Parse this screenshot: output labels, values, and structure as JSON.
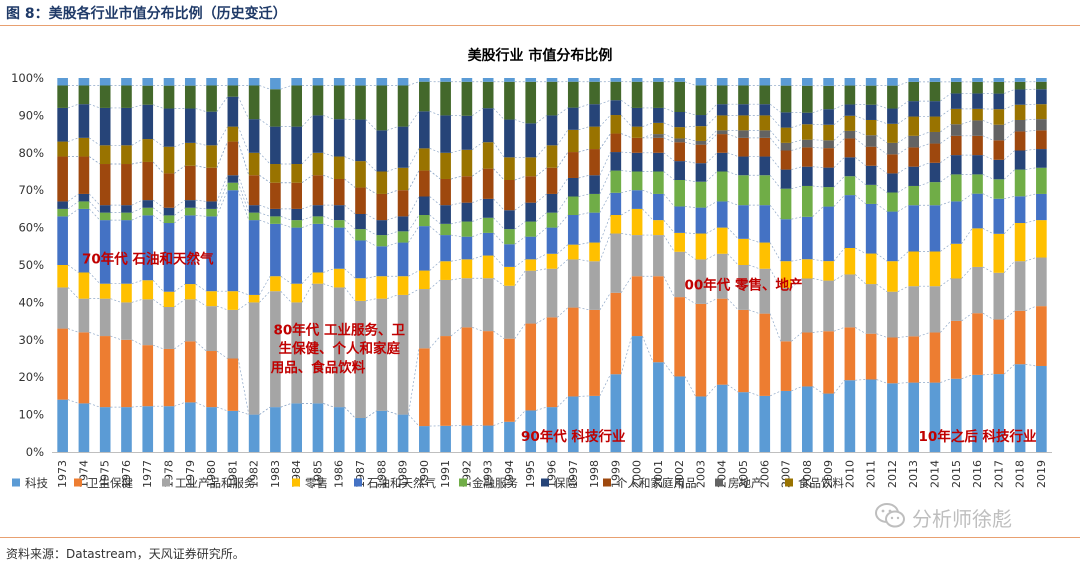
{
  "figure_label": "图 8：美股各行业市值分布比例（历史变迁）",
  "source": "资料来源：Datastream，天风证券研究所。",
  "watermark": "分析师徐彪",
  "watermark_icon": "wechat-icon",
  "chart_data": {
    "type": "bar",
    "stacked": true,
    "title": "美股行业 市值分布比例",
    "xlabel": "",
    "ylabel": "",
    "ylim": [
      0,
      100
    ],
    "y_ticks": [
      "0%",
      "10%",
      "20%",
      "30%",
      "40%",
      "50%",
      "60%",
      "70%",
      "80%",
      "90%",
      "100%"
    ],
    "grid": false,
    "legend_position": "bottom",
    "categories": [
      "1973",
      "1974",
      "1975",
      "1976",
      "1977",
      "1978",
      "1979",
      "1980",
      "1981",
      "1982",
      "1983",
      "1984",
      "1985",
      "1986",
      "1987",
      "1988",
      "1989",
      "1990",
      "1991",
      "1992",
      "1993",
      "1994",
      "1995",
      "1996",
      "1997",
      "1998",
      "1999",
      "2000",
      "2001",
      "2002",
      "2003",
      "2004",
      "2005",
      "2006",
      "2007",
      "2008",
      "2009",
      "2010",
      "2011",
      "2012",
      "2013",
      "2014",
      "2015",
      "2016",
      "2017",
      "2018",
      "2019"
    ],
    "series": [
      {
        "name": "科技",
        "color": "#5b9bd5",
        "values": [
          14,
          13,
          12,
          12,
          12,
          12,
          13,
          12,
          11,
          10,
          12,
          13,
          13,
          12,
          9,
          11,
          10,
          7,
          7,
          7,
          7,
          8,
          11,
          12,
          15,
          15,
          21,
          31,
          24,
          20,
          15,
          18,
          16,
          15,
          16,
          17,
          15,
          19,
          19,
          18,
          18,
          18,
          19,
          20,
          20,
          23,
          23
        ]
      },
      {
        "name": "卫生保健",
        "color": "#ed7d31",
        "values": [
          19,
          19,
          19,
          18,
          16,
          15,
          16,
          15,
          14,
          0,
          0,
          0,
          0,
          0,
          0,
          0,
          0,
          21,
          24,
          26,
          25,
          22,
          23,
          24,
          24,
          23,
          22,
          16,
          23,
          21,
          25,
          23,
          22,
          22,
          13,
          14,
          16,
          14,
          12,
          12,
          12,
          13,
          15,
          16,
          14,
          14,
          16
        ]
      },
      {
        "name": "工业产品和服务",
        "color": "#a5a5a5",
        "values": [
          11,
          9,
          10,
          10,
          12,
          11,
          11,
          12,
          13,
          30,
          31,
          27,
          32,
          32,
          31,
          30,
          32,
          16,
          15,
          13,
          14,
          14,
          14,
          13,
          13,
          13,
          16,
          11,
          11,
          12,
          12,
          12,
          12,
          12,
          14,
          14,
          13,
          14,
          13,
          12,
          13,
          12,
          11,
          12,
          12,
          13,
          13
        ]
      },
      {
        "name": "零售",
        "color": "#ffc000",
        "values": [
          6,
          7,
          4,
          5,
          5,
          4,
          4,
          4,
          5,
          2,
          4,
          5,
          3,
          5,
          6,
          6,
          5,
          5,
          5,
          5,
          6,
          5,
          3,
          4,
          4,
          5,
          5,
          7,
          4,
          5,
          7,
          7,
          7,
          7,
          7,
          5,
          5,
          7,
          8,
          8,
          9,
          9,
          9,
          10,
          10,
          10,
          10
        ]
      },
      {
        "name": "石油和天然气",
        "color": "#4472c4",
        "values": [
          13,
          17,
          17,
          17,
          17,
          18,
          18,
          20,
          27,
          20,
          14,
          15,
          13,
          11,
          10,
          8,
          9,
          12,
          7,
          6,
          6,
          6,
          6,
          7,
          8,
          8,
          6,
          5,
          7,
          7,
          7,
          7,
          9,
          10,
          11,
          11,
          14,
          14,
          13,
          13,
          12,
          12,
          11,
          9,
          9,
          7,
          7
        ]
      },
      {
        "name": "金融服务",
        "color": "#70ad47",
        "values": [
          2,
          2,
          2,
          2,
          2,
          2,
          2,
          2,
          2,
          2,
          2,
          2,
          2,
          2,
          3,
          3,
          3,
          3,
          3,
          4,
          4,
          4,
          4,
          4,
          5,
          5,
          6,
          5,
          6,
          7,
          7,
          8,
          8,
          8,
          8,
          8,
          5,
          5,
          5,
          5,
          5,
          6,
          7,
          5,
          5,
          7,
          7
        ]
      },
      {
        "name": "保险",
        "color": "#264478",
        "values": [
          2,
          2,
          2,
          2,
          2,
          2,
          2,
          2,
          2,
          2,
          2,
          3,
          3,
          4,
          4,
          4,
          4,
          5,
          5,
          5,
          5,
          5,
          5,
          5,
          5,
          5,
          5,
          5,
          5,
          5,
          5,
          5,
          5,
          5,
          5,
          5,
          5,
          5,
          5,
          5,
          5,
          5,
          5,
          5,
          5,
          5,
          5
        ]
      },
      {
        "name": "个人和家庭用品",
        "color": "#9e480e",
        "values": [
          12,
          10,
          11,
          11,
          10,
          9,
          9,
          9,
          9,
          8,
          7,
          7,
          8,
          7,
          7,
          7,
          7,
          7,
          7,
          7,
          8,
          8,
          7,
          7,
          7,
          7,
          5,
          4,
          4,
          5,
          5,
          5,
          5,
          5,
          5,
          5,
          5,
          5,
          5,
          5,
          5,
          5,
          5,
          5,
          5,
          5,
          5
        ]
      },
      {
        "name": "房地产",
        "color": "#636363",
        "values": [
          0,
          0,
          0,
          0,
          0,
          0,
          0,
          0,
          0,
          0,
          0,
          0,
          0,
          0,
          0,
          0,
          0,
          0,
          0,
          0,
          0,
          0,
          0,
          0,
          0,
          0,
          0,
          0,
          1,
          1,
          1,
          1,
          2,
          2,
          2,
          2,
          2,
          2,
          3,
          3,
          3,
          3,
          3,
          4,
          4,
          3,
          3
        ]
      },
      {
        "name": "食品饮料",
        "color": "#997300",
        "values": [
          4,
          5,
          5,
          5,
          6,
          7,
          6,
          6,
          4,
          6,
          5,
          5,
          6,
          6,
          7,
          6,
          6,
          6,
          7,
          7,
          7,
          6,
          5,
          6,
          6,
          6,
          5,
          3,
          3,
          3,
          4,
          4,
          4,
          4,
          4,
          4,
          4,
          4,
          4,
          5,
          5,
          4,
          4,
          3,
          4,
          4,
          4
        ]
      },
      {
        "name": "",
        "color": "#264478",
        "values": [
          9,
          9,
          10,
          10,
          9,
          10,
          9,
          9,
          8,
          9,
          10,
          10,
          10,
          10,
          11,
          11,
          11,
          10,
          10,
          9,
          9,
          10,
          9,
          8,
          6,
          6,
          4,
          5,
          4,
          4,
          3,
          3,
          3,
          3,
          4,
          3,
          4,
          3,
          4,
          4,
          4,
          4,
          4,
          4,
          4,
          4,
          4
        ]
      },
      {
        "name": "",
        "color": "#43682b",
        "values": [
          6,
          5,
          6,
          6,
          5,
          6,
          6,
          7,
          3,
          9,
          10,
          11,
          8,
          9,
          9,
          12,
          11,
          8,
          9,
          9,
          7,
          10,
          11,
          9,
          7,
          6,
          5,
          7,
          7,
          8,
          8,
          5,
          5,
          5,
          7,
          7,
          6,
          5,
          5,
          6,
          5,
          5,
          3,
          3,
          3,
          2,
          2
        ]
      },
      {
        "name": "",
        "color": "#5b9bd5",
        "values": [
          2,
          2,
          2,
          2,
          2,
          2,
          2,
          2,
          2,
          2,
          3,
          2,
          2,
          2,
          2,
          2,
          2,
          1,
          1,
          1,
          1,
          1,
          1,
          1,
          1,
          1,
          1,
          1,
          1,
          1,
          2,
          2,
          2,
          2,
          2,
          2,
          2,
          2,
          2,
          2,
          1,
          1,
          1,
          1,
          1,
          1,
          1
        ]
      }
    ],
    "annotations": [
      {
        "text": "70年代 石油和天然气",
        "x": "1977",
        "y": 51.5
      },
      {
        "text": "80年代 工业服务、卫",
        "x": "1986",
        "y": 32.5
      },
      {
        "text": "生保健、个人和家庭",
        "x": "1986",
        "y": 27.5
      },
      {
        "text": "用品、食品饮料",
        "x": "1985",
        "y": 22.5
      },
      {
        "text": "00年代 零售、地产",
        "x": "2005",
        "y": 44.5
      },
      {
        "text": "90年代 科技行业",
        "x": "1997",
        "y": 4
      },
      {
        "text": "10年之后 科技行业",
        "x": "2016",
        "y": 4
      }
    ]
  }
}
